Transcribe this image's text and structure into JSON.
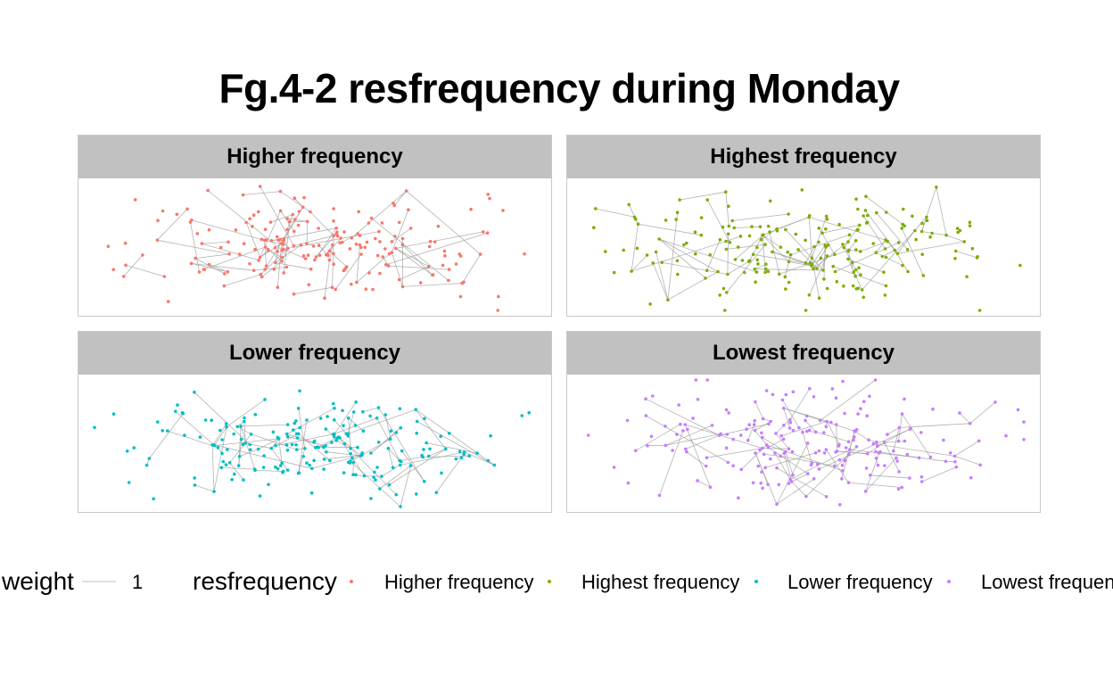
{
  "chart_data": {
    "type": "scatter",
    "title": "Fg.4-2 resfrequency during Monday",
    "colors": {
      "Higher frequency": "#F8766D",
      "Highest frequency": "#7CAE00",
      "Lower frequency": "#00BFC4",
      "Lowest frequency": "#C77CFF",
      "edge": "#999999"
    },
    "facets": [
      {
        "label": "Higher frequency"
      },
      {
        "label": "Highest frequency"
      },
      {
        "label": "Lower frequency"
      },
      {
        "label": "Lowest frequency"
      }
    ],
    "legend": {
      "position": "bottom",
      "weight_title": "weight",
      "weight_value": "1",
      "color_title": "resfrequency",
      "entries": [
        "Higher frequency",
        "Highest frequency",
        "Lower frequency",
        "Lowest frequency"
      ]
    },
    "grid": false
  }
}
